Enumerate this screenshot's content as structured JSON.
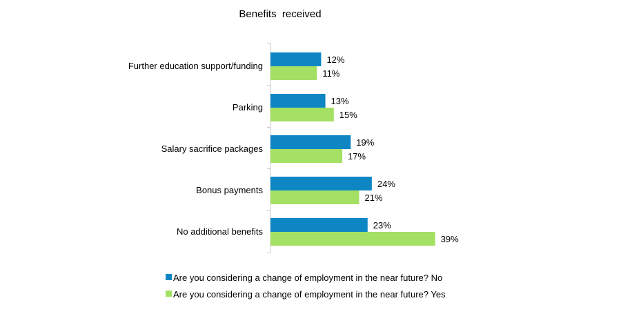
{
  "chart_data": {
    "type": "bar",
    "orientation": "horizontal",
    "title": "Benefits  received",
    "categories": [
      "Further education support/funding",
      "Parking",
      "Salary sacrifice packages",
      "Bonus payments",
      "No additional benefits"
    ],
    "series": [
      {
        "name": "Are you considering a change of employment in the near future? No",
        "color": "#0e86c4",
        "values": [
          12,
          13,
          19,
          24,
          23
        ],
        "labels": [
          "12%",
          "13%",
          "19%",
          "24%",
          "23%"
        ]
      },
      {
        "name": "Are you considering a change of employment in the near future? Yes",
        "color": "#a3e063",
        "values": [
          11,
          15,
          17,
          21,
          39
        ],
        "labels": [
          "11%",
          "15%",
          "17%",
          "21%",
          "39%"
        ]
      }
    ],
    "value_unit": "%",
    "xlim": [
      0,
      45
    ],
    "grid": false,
    "legend_position": "bottom"
  }
}
